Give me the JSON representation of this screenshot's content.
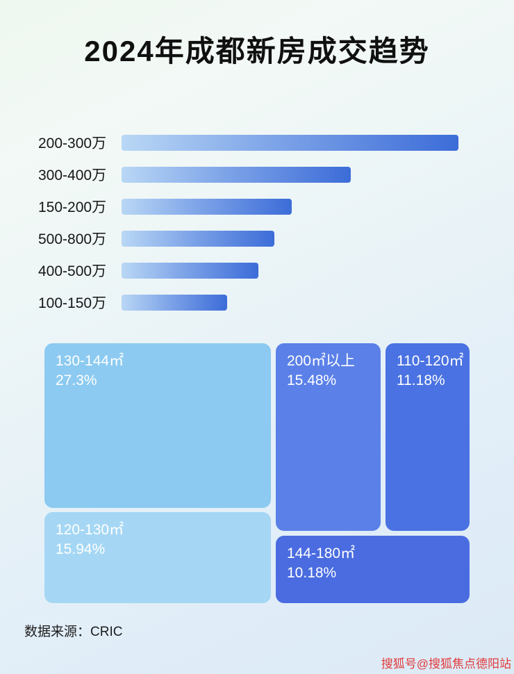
{
  "page": {
    "title": "2024年成都新房成交趋势",
    "source": "数据来源：CRIC",
    "watermark": "搜狐号@搜狐焦点德阳站"
  },
  "colors": {
    "bar_gradient_start": "#b9d7f5",
    "bar_gradient_end": "#3c6cd8",
    "treemap_light_blue": "#8ccaf1",
    "treemap_lighter_blue": "#a5d7f4",
    "treemap_royal_blue": "#5b80e8",
    "treemap_deep_blue": "#4a6ce0",
    "watermark_red": "#e23b3b"
  },
  "chart_data": [
    {
      "type": "bar",
      "orientation": "horizontal",
      "title": "2024年成都新房成交趋势",
      "categories": [
        "200-300万",
        "300-400万",
        "150-200万",
        "500-800万",
        "400-500万",
        "100-150万"
      ],
      "values": [
        100,
        68,
        50.5,
        45.4,
        40.6,
        31.3
      ],
      "values_note": "relative bar lengths in % of longest bar; no numeric axis shown in image",
      "xlabel": "",
      "ylabel": "",
      "grid": false,
      "legend": false
    },
    {
      "type": "treemap",
      "title": "",
      "items": [
        {
          "label": "130-144㎡",
          "value": 27.3,
          "display": "27.3%"
        },
        {
          "label": "200㎡以上",
          "value": 15.48,
          "display": "15.48%"
        },
        {
          "label": "120-130㎡",
          "value": 15.94,
          "display": "15.94%"
        },
        {
          "label": "110-120㎡",
          "value": 11.18,
          "display": "11.18%"
        },
        {
          "label": "144-180㎡",
          "value": 10.18,
          "display": "10.18%"
        }
      ]
    }
  ]
}
